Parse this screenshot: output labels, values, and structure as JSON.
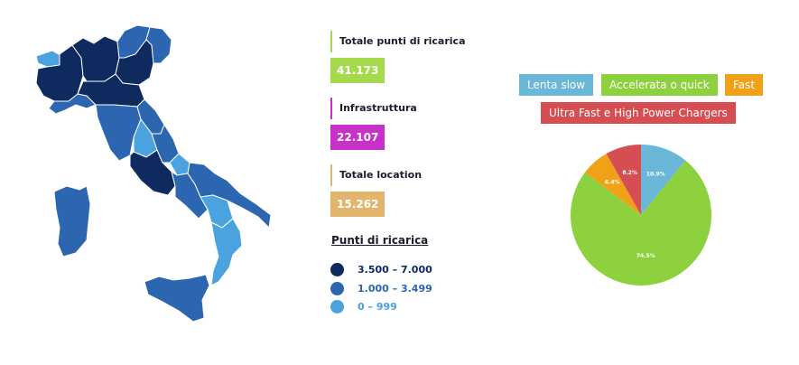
{
  "colors": {
    "dark": "#0f2a5e",
    "mid": "#2c66b0",
    "light": "#4aa2df",
    "stat_total": "#a6d94b",
    "stat_infra": "#c830c8",
    "stat_loc": "#e3b56c"
  },
  "stats": {
    "total": {
      "label": "Totale punti di ricarica",
      "value": "41.173"
    },
    "infra": {
      "label": "Infrastruttura",
      "value": "22.107"
    },
    "locations": {
      "label": "Totale location",
      "value": "15.262"
    }
  },
  "legend": {
    "title": "Punti di ricarica",
    "items": [
      {
        "label": "3.500 – 7.000",
        "color": "#0f2a5e"
      },
      {
        "label": "1.000 – 3.499",
        "color": "#2c66b0"
      },
      {
        "label": "0 – 999",
        "color": "#4aa2df"
      }
    ]
  },
  "chart_data": {
    "type": "pie",
    "categories": [
      "Lenta slow",
      "Accelerata o quick",
      "Fast",
      "Ultra Fast e High Power Chargers"
    ],
    "values": [
      10.9,
      74.5,
      6.4,
      8.2
    ],
    "value_labels": [
      "10.9%",
      "74.5%",
      "6.4%",
      "8.2%"
    ],
    "colors": [
      "#6ab7d8",
      "#8ed13e",
      "#f0a118",
      "#d64e52"
    ],
    "legend_position": "top"
  }
}
